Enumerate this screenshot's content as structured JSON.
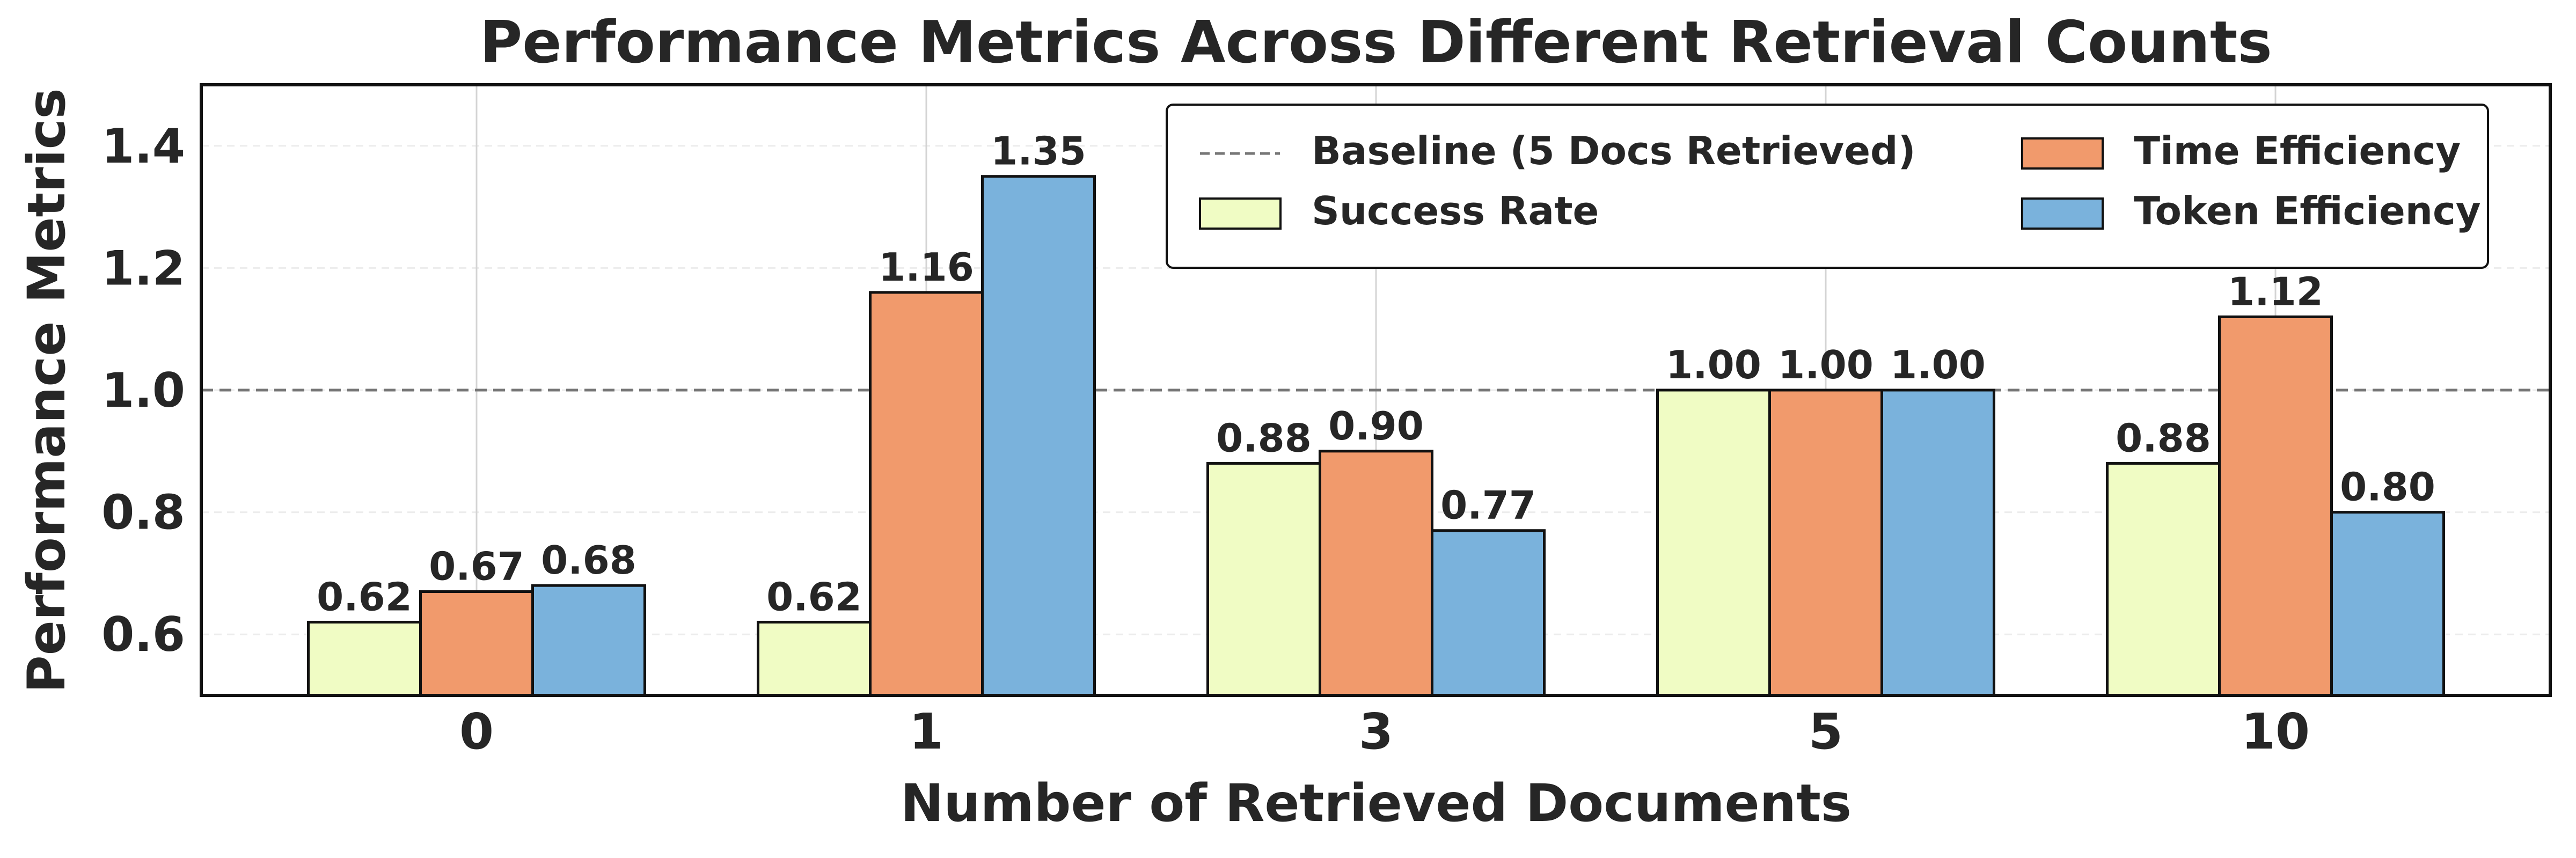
{
  "chart_data": {
    "type": "bar",
    "title": "Performance Metrics Across Different Retrieval Counts",
    "xlabel": "Number of Retrieved Documents",
    "ylabel": "Performance Metrics",
    "categories": [
      "0",
      "1",
      "3",
      "5",
      "10"
    ],
    "series": [
      {
        "name": "Success Rate",
        "color": "#f0fcc4",
        "values": [
          0.62,
          0.62,
          0.88,
          1.0,
          0.88
        ],
        "labels": [
          "0.62",
          "0.62",
          "0.88",
          "1.00",
          "0.88"
        ]
      },
      {
        "name": "Time Efficiency",
        "color": "#f19a6c",
        "values": [
          0.67,
          1.16,
          0.9,
          1.0,
          1.12
        ],
        "labels": [
          "0.67",
          "1.16",
          "0.90",
          "1.00",
          "1.12"
        ]
      },
      {
        "name": "Token Efficiency",
        "color": "#7ab2dc",
        "values": [
          0.68,
          1.35,
          0.77,
          1.0,
          0.8
        ],
        "labels": [
          "0.68",
          "1.35",
          "0.77",
          "1.00",
          "0.80"
        ]
      }
    ],
    "baseline": {
      "value": 1.0,
      "label": "Baseline (5 Docs Retrieved)",
      "color": "#777777",
      "style": "dashed"
    },
    "ylim": [
      0.5,
      1.5
    ],
    "yticks": [
      "0.6",
      "0.8",
      "1.0",
      "1.2",
      "1.4"
    ],
    "grid": true,
    "legend_position": "top-right",
    "legend_entries": [
      "Baseline (5 Docs Retrieved)",
      "Success Rate",
      "Time Efficiency",
      "Token Efficiency"
    ]
  }
}
